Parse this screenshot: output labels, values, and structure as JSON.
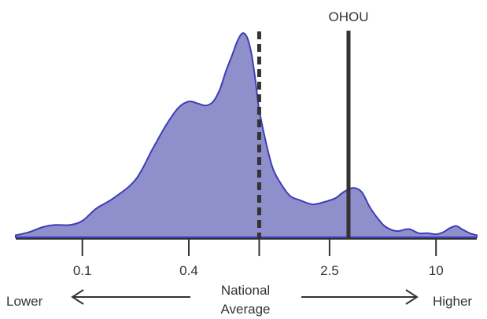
{
  "chart_data": {
    "type": "area",
    "title": "",
    "xlabel": "",
    "ylabel": "",
    "x_scale": "log",
    "xlim": [
      0.042,
      17
    ],
    "ylim": [
      0,
      1
    ],
    "ticks": [
      {
        "value": 0.1,
        "label": "0.1"
      },
      {
        "value": 0.4,
        "label": "0.4"
      },
      {
        "value": 1,
        "label": ""
      },
      {
        "value": 2.5,
        "label": "2.5"
      },
      {
        "value": 10,
        "label": "10"
      }
    ],
    "series": [
      {
        "x": [
          0.042,
          0.05,
          0.06,
          0.07,
          0.085,
          0.1,
          0.12,
          0.15,
          0.2,
          0.25,
          0.3,
          0.35,
          0.4,
          0.45,
          0.5,
          0.55,
          0.6,
          0.65,
          0.7,
          0.75,
          0.8,
          0.85,
          0.9,
          0.95,
          1.0,
          1.1,
          1.2,
          1.35,
          1.5,
          1.7,
          2.0,
          2.3,
          2.7,
          3.0,
          3.4,
          3.8,
          4.2,
          4.7,
          5.2,
          6.0,
          7.0,
          8.0,
          9.0,
          10.0,
          11.0,
          12.0,
          13.0,
          14.0,
          15.5,
          17.0
        ],
        "y": [
          0.01,
          0.025,
          0.05,
          0.06,
          0.06,
          0.08,
          0.14,
          0.19,
          0.28,
          0.43,
          0.55,
          0.63,
          0.66,
          0.65,
          0.64,
          0.66,
          0.72,
          0.81,
          0.88,
          0.95,
          0.99,
          0.975,
          0.9,
          0.77,
          0.62,
          0.45,
          0.33,
          0.25,
          0.2,
          0.18,
          0.16,
          0.17,
          0.19,
          0.22,
          0.24,
          0.22,
          0.15,
          0.09,
          0.05,
          0.03,
          0.04,
          0.02,
          0.02,
          0.015,
          0.025,
          0.045,
          0.055,
          0.04,
          0.02,
          0.01
        ]
      }
    ],
    "reference_lines": [
      {
        "x": 1.0,
        "label": "",
        "style": "dashed"
      },
      {
        "x": 3.2,
        "label": "OHOU",
        "style": "solid"
      }
    ],
    "direction_labels": {
      "lower": "Lower",
      "middle_line1": "National",
      "middle_line2": "Average",
      "higher": "Higher"
    },
    "colors": {
      "fill": "#8f8fcb",
      "stroke": "#3d3db8",
      "reference": "#333333",
      "axis": "#333333",
      "text": "#333333"
    },
    "grid": false,
    "legend": "none"
  }
}
